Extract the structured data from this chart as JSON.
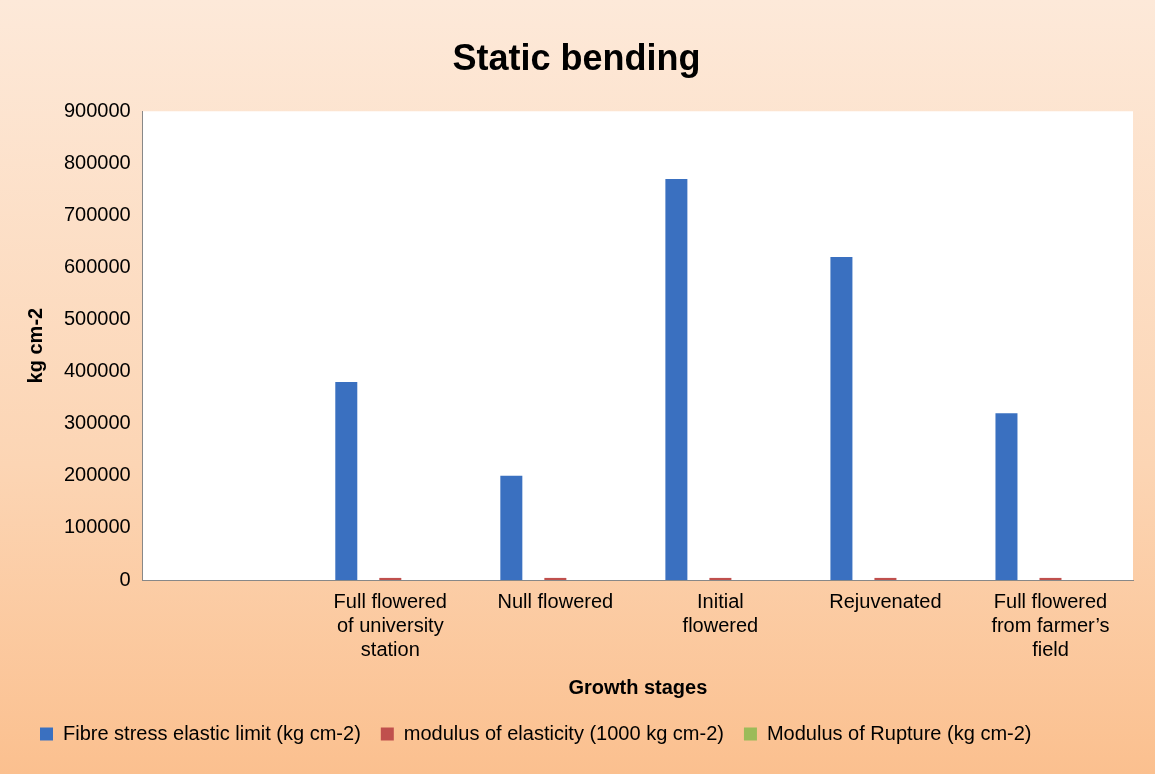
{
  "chart_data": {
    "type": "bar",
    "title": "Static bending",
    "xlabel": "Growth stages",
    "ylabel": "kg cm-2",
    "categories": [
      null,
      "Full flowered of university station",
      "Null flowered",
      "Initial flowered",
      "Rejuvenated",
      "Full flowered from farmer’s field"
    ],
    "series": [
      {
        "name": "Fibre stress elastic limit (kg cm-2)",
        "color": "#3a70c0",
        "values": [
          null,
          380000,
          200000,
          770000,
          620000,
          320000
        ]
      },
      {
        "name": "modulus of elasticity (1000 kg cm-2)",
        "color": "#c0504d",
        "values": [
          null,
          4000,
          4000,
          4000,
          4000,
          4000
        ]
      },
      {
        "name": "Modulus of Rupture (kg cm-2)",
        "color": "#9bbb59",
        "values": [
          null,
          0,
          0,
          0,
          0,
          0
        ]
      }
    ],
    "ylim": [
      0,
      900000
    ],
    "yticks": [
      0,
      100000,
      200000,
      300000,
      400000,
      500000,
      600000,
      700000,
      800000,
      900000
    ],
    "grid": false,
    "legend": "bottom"
  }
}
